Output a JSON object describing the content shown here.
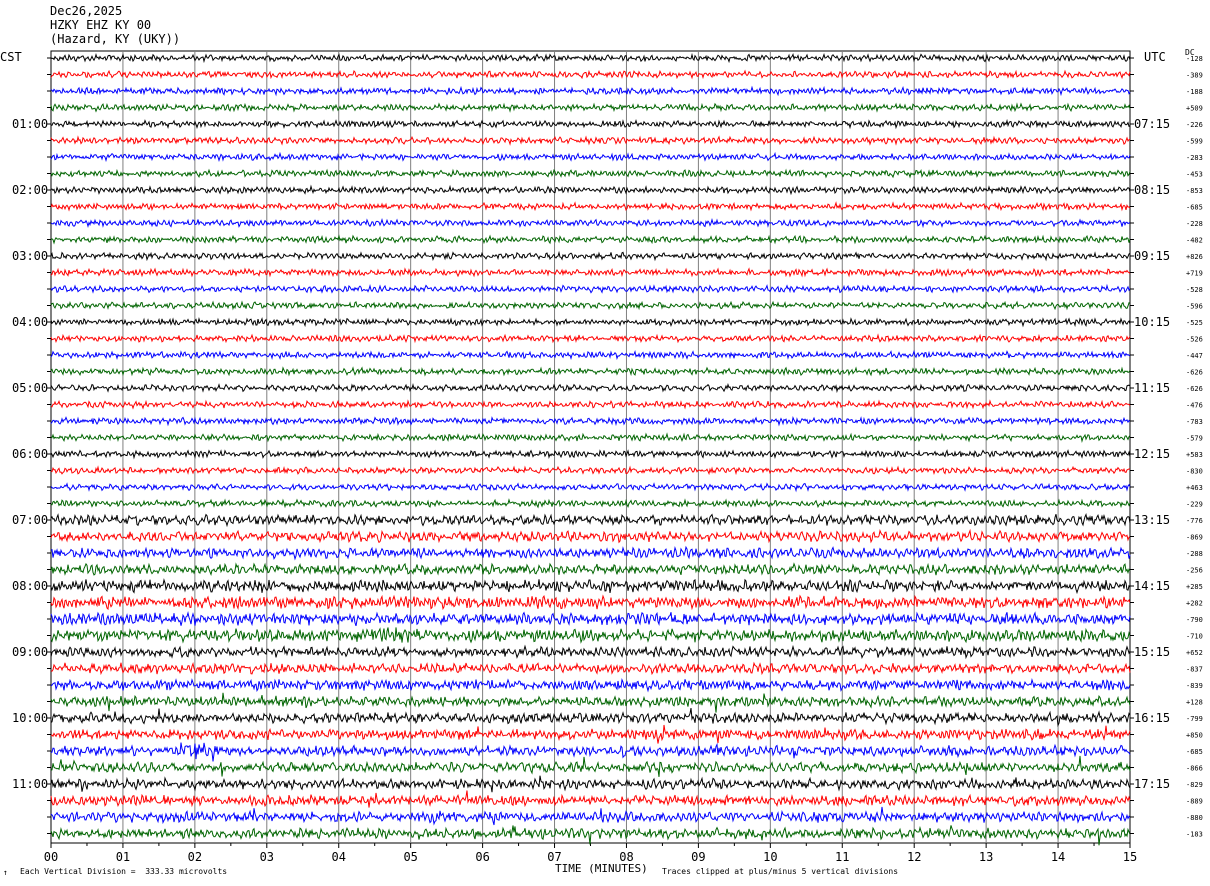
{
  "header": {
    "date": "Dec26,2025",
    "station": "HZKY EHZ KY 00",
    "location": "(Hazard, KY (UKY))"
  },
  "zones": {
    "left": "CST",
    "right": "UTC",
    "dc": "DC"
  },
  "footer": {
    "scale_note": "Each Vertical Division =  333.33 microvolts",
    "clip_note": "Traces clipped at plus/minus 5 vertical divisions",
    "corner_mark": "↑"
  },
  "chart_data": {
    "type": "line",
    "title": "",
    "xlabel": "TIME (MINUTES)",
    "ylabel": "",
    "xlim": [
      0,
      15
    ],
    "x_ticks": [
      "00",
      "01",
      "02",
      "03",
      "04",
      "05",
      "06",
      "07",
      "08",
      "09",
      "10",
      "11",
      "12",
      "13",
      "14",
      "15"
    ],
    "trace_count": 48,
    "trace_colors": [
      "#000000",
      "#ff0000",
      "#0000ff",
      "#006400"
    ],
    "left_time_labels": [
      "01:00",
      "02:00",
      "03:00",
      "04:00",
      "05:00",
      "06:00",
      "07:00",
      "08:00",
      "09:00",
      "10:00",
      "11:00"
    ],
    "right_time_labels": [
      "07:15",
      "08:15",
      "09:15",
      "10:15",
      "11:15",
      "12:15",
      "13:15",
      "14:15",
      "15:15",
      "16:15",
      "17:15"
    ],
    "dc_offsets": [
      "-128",
      "-389",
      "-188",
      "+509",
      "-226",
      "-599",
      "-283",
      "-453",
      "-853",
      "-685",
      "-228",
      "-482",
      "+826",
      "+719",
      "-528",
      "-596",
      "-525",
      "-526",
      "-447",
      "-626",
      "-626",
      "-476",
      "-783",
      "-579",
      "+583",
      "-830",
      "+463",
      "-229",
      "-776",
      "-869",
      "-288",
      "-256",
      "+285",
      "+282",
      "-790",
      "-710",
      "+652",
      "-837",
      "-839",
      "+128",
      "-799",
      "+850",
      "-685",
      "-866",
      "-829",
      "-889",
      "-880",
      "-183"
    ]
  }
}
